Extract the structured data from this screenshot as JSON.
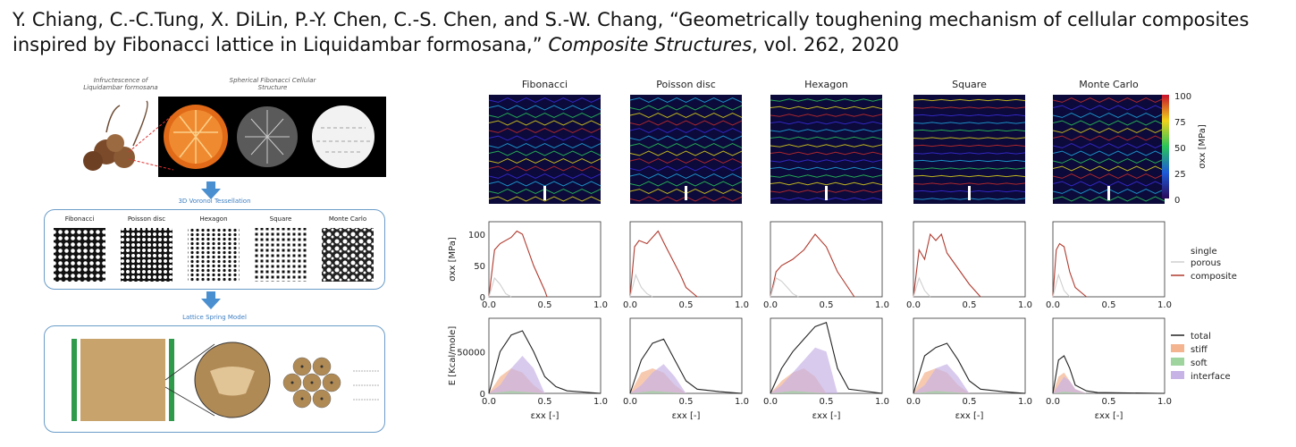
{
  "citation": {
    "authors": "Y. Chiang, C.-C.Tung, X. DiLin, P.-Y. Chen, C.-S. Chen, and S.-W. Chang,",
    "title": "“Geometrically toughening mechanism of cellular composites inspired by Fibonacci lattice in Liquidambar formosana,”",
    "journal": "Composite Structures",
    "volume_year": ", vol. 262, 2020"
  },
  "left_panel": {
    "photo_label_1": "Infructescence of Liquidambar formosana",
    "photo_label_2": "Spherical Fibonacci Cellular Structure",
    "tess_title": "3D Voronoi Tessellation",
    "tess_labels": [
      "Fibonacci",
      "Poisson disc",
      "Hexagon",
      "Square",
      "Monte Carlo"
    ],
    "lattice_title": "Lattice Spring Model"
  },
  "right_figure": {
    "columns": [
      "Fibonacci",
      "Poisson disc",
      "Hexagon",
      "Square",
      "Monte Carlo"
    ],
    "colorbar": {
      "ticks": [
        "100",
        "75",
        "50",
        "25",
        "0"
      ],
      "label": "σxx [MPa]",
      "range": [
        0,
        100
      ]
    },
    "row2": {
      "ylabel": "σxx [MPa]",
      "yticks": [
        "0",
        "50",
        "100"
      ],
      "legend": [
        "single porous",
        "composite"
      ],
      "colors": {
        "single": "#cfcfcf",
        "composite": "#b03a2e"
      }
    },
    "row3": {
      "ylabel": "E [Kcal/mole]",
      "yticks": [
        "0",
        "50000"
      ],
      "xticks": [
        "0.0",
        "0.5",
        "1.0"
      ],
      "xlabel": "εxx [-]",
      "legend": [
        "total",
        "stiff",
        "soft",
        "interface"
      ],
      "colors": {
        "total": "#222222",
        "stiff": "#f3b48f",
        "soft": "#9fd49f",
        "interface": "#c7b3e6"
      }
    }
  },
  "chart_data": [
    {
      "type": "line",
      "title": "",
      "ylabel": "σxx [MPa]",
      "xlabel": "εxx [-]",
      "xlim": [
        0,
        1
      ],
      "ylim": [
        0,
        120
      ],
      "panels": [
        "Fibonacci",
        "Poisson disc",
        "Hexagon",
        "Square",
        "Monte Carlo"
      ],
      "series": [
        {
          "name": "composite",
          "per_panel": [
            {
              "x": [
                0,
                0.05,
                0.1,
                0.2,
                0.25,
                0.3,
                0.4,
                0.5,
                0.52
              ],
              "y": [
                0,
                75,
                85,
                95,
                105,
                100,
                50,
                10,
                0
              ]
            },
            {
              "x": [
                0,
                0.04,
                0.08,
                0.15,
                0.25,
                0.32,
                0.45,
                0.5,
                0.6
              ],
              "y": [
                0,
                80,
                90,
                85,
                105,
                80,
                35,
                15,
                0
              ]
            },
            {
              "x": [
                0,
                0.05,
                0.1,
                0.2,
                0.3,
                0.4,
                0.5,
                0.6,
                0.75
              ],
              "y": [
                0,
                40,
                50,
                60,
                75,
                100,
                80,
                40,
                0
              ]
            },
            {
              "x": [
                0,
                0.05,
                0.1,
                0.15,
                0.2,
                0.25,
                0.3,
                0.4,
                0.5,
                0.6
              ],
              "y": [
                0,
                75,
                60,
                100,
                90,
                100,
                70,
                45,
                20,
                0
              ]
            },
            {
              "x": [
                0,
                0.03,
                0.06,
                0.1,
                0.15,
                0.2,
                0.3
              ],
              "y": [
                0,
                75,
                85,
                80,
                40,
                15,
                0
              ]
            }
          ]
        },
        {
          "name": "single porous",
          "per_panel": [
            {
              "x": [
                0,
                0.05,
                0.1,
                0.15,
                0.2
              ],
              "y": [
                0,
                30,
                20,
                5,
                0
              ]
            },
            {
              "x": [
                0,
                0.05,
                0.1,
                0.15,
                0.2
              ],
              "y": [
                0,
                35,
                15,
                5,
                0
              ]
            },
            {
              "x": [
                0,
                0.05,
                0.1,
                0.15,
                0.2,
                0.25
              ],
              "y": [
                0,
                30,
                25,
                15,
                5,
                0
              ]
            },
            {
              "x": [
                0,
                0.05,
                0.1,
                0.15
              ],
              "y": [
                0,
                30,
                10,
                0
              ]
            },
            {
              "x": [
                0,
                0.05,
                0.1,
                0.15
              ],
              "y": [
                0,
                35,
                10,
                0
              ]
            }
          ]
        }
      ]
    },
    {
      "type": "area",
      "title": "",
      "ylabel": "E [Kcal/mole]",
      "xlabel": "εxx [-]",
      "xlim": [
        0,
        1
      ],
      "ylim": [
        0,
        90000
      ],
      "panels": [
        "Fibonacci",
        "Poisson disc",
        "Hexagon",
        "Square",
        "Monte Carlo"
      ],
      "series": [
        {
          "name": "total",
          "per_panel": [
            {
              "x": [
                0,
                0.1,
                0.2,
                0.3,
                0.4,
                0.5,
                0.6,
                0.7,
                1.0
              ],
              "y": [
                0,
                50000,
                70000,
                75000,
                50000,
                20000,
                8000,
                3000,
                0
              ]
            },
            {
              "x": [
                0,
                0.1,
                0.2,
                0.3,
                0.4,
                0.5,
                0.6,
                0.8,
                1.0
              ],
              "y": [
                0,
                40000,
                60000,
                65000,
                40000,
                15000,
                5000,
                2000,
                0
              ]
            },
            {
              "x": [
                0,
                0.1,
                0.2,
                0.3,
                0.4,
                0.5,
                0.6,
                0.7,
                1.0
              ],
              "y": [
                0,
                30000,
                50000,
                65000,
                80000,
                85000,
                30000,
                5000,
                0
              ]
            },
            {
              "x": [
                0,
                0.1,
                0.2,
                0.3,
                0.4,
                0.5,
                0.6,
                0.8,
                1.0
              ],
              "y": [
                0,
                45000,
                55000,
                60000,
                40000,
                15000,
                5000,
                2000,
                0
              ]
            },
            {
              "x": [
                0,
                0.05,
                0.1,
                0.15,
                0.2,
                0.3,
                0.4,
                1.0
              ],
              "y": [
                0,
                40000,
                45000,
                30000,
                10000,
                3000,
                1000,
                0
              ]
            }
          ]
        },
        {
          "name": "stiff",
          "per_panel": [
            {
              "x": [
                0,
                0.1,
                0.2,
                0.3,
                0.4,
                0.5
              ],
              "y": [
                0,
                20000,
                30000,
                25000,
                10000,
                0
              ]
            },
            {
              "x": [
                0,
                0.1,
                0.2,
                0.3,
                0.4,
                0.5
              ],
              "y": [
                0,
                25000,
                30000,
                25000,
                10000,
                0
              ]
            },
            {
              "x": [
                0,
                0.1,
                0.2,
                0.3,
                0.4,
                0.5
              ],
              "y": [
                0,
                15000,
                25000,
                30000,
                20000,
                0
              ]
            },
            {
              "x": [
                0,
                0.1,
                0.2,
                0.3,
                0.4,
                0.5
              ],
              "y": [
                0,
                25000,
                30000,
                25000,
                10000,
                0
              ]
            },
            {
              "x": [
                0,
                0.05,
                0.1,
                0.15,
                0.2,
                0.3
              ],
              "y": [
                0,
                20000,
                25000,
                15000,
                5000,
                0
              ]
            }
          ]
        },
        {
          "name": "interface",
          "per_panel": [
            {
              "x": [
                0,
                0.1,
                0.2,
                0.3,
                0.4,
                0.5
              ],
              "y": [
                0,
                10000,
                30000,
                45000,
                30000,
                0
              ]
            },
            {
              "x": [
                0,
                0.1,
                0.2,
                0.3,
                0.4,
                0.5
              ],
              "y": [
                0,
                10000,
                25000,
                35000,
                20000,
                0
              ]
            },
            {
              "x": [
                0,
                0.1,
                0.2,
                0.3,
                0.4,
                0.5,
                0.6
              ],
              "y": [
                0,
                10000,
                25000,
                40000,
                55000,
                50000,
                0
              ]
            },
            {
              "x": [
                0,
                0.1,
                0.2,
                0.3,
                0.4,
                0.5
              ],
              "y": [
                0,
                10000,
                30000,
                35000,
                20000,
                0
              ]
            },
            {
              "x": [
                0,
                0.05,
                0.1,
                0.15,
                0.2,
                0.3
              ],
              "y": [
                0,
                10000,
                20000,
                15000,
                5000,
                0
              ]
            }
          ]
        },
        {
          "name": "soft",
          "per_panel": [
            {
              "x": [
                0,
                0.2,
                0.5
              ],
              "y": [
                0,
                3000,
                0
              ]
            },
            {
              "x": [
                0,
                0.2,
                0.5
              ],
              "y": [
                0,
                3000,
                0
              ]
            },
            {
              "x": [
                0,
                0.2,
                0.5
              ],
              "y": [
                0,
                3000,
                0
              ]
            },
            {
              "x": [
                0,
                0.2,
                0.5
              ],
              "y": [
                0,
                3000,
                0
              ]
            },
            {
              "x": [
                0,
                0.1,
                0.3
              ],
              "y": [
                0,
                2000,
                0
              ]
            }
          ]
        }
      ]
    }
  ]
}
